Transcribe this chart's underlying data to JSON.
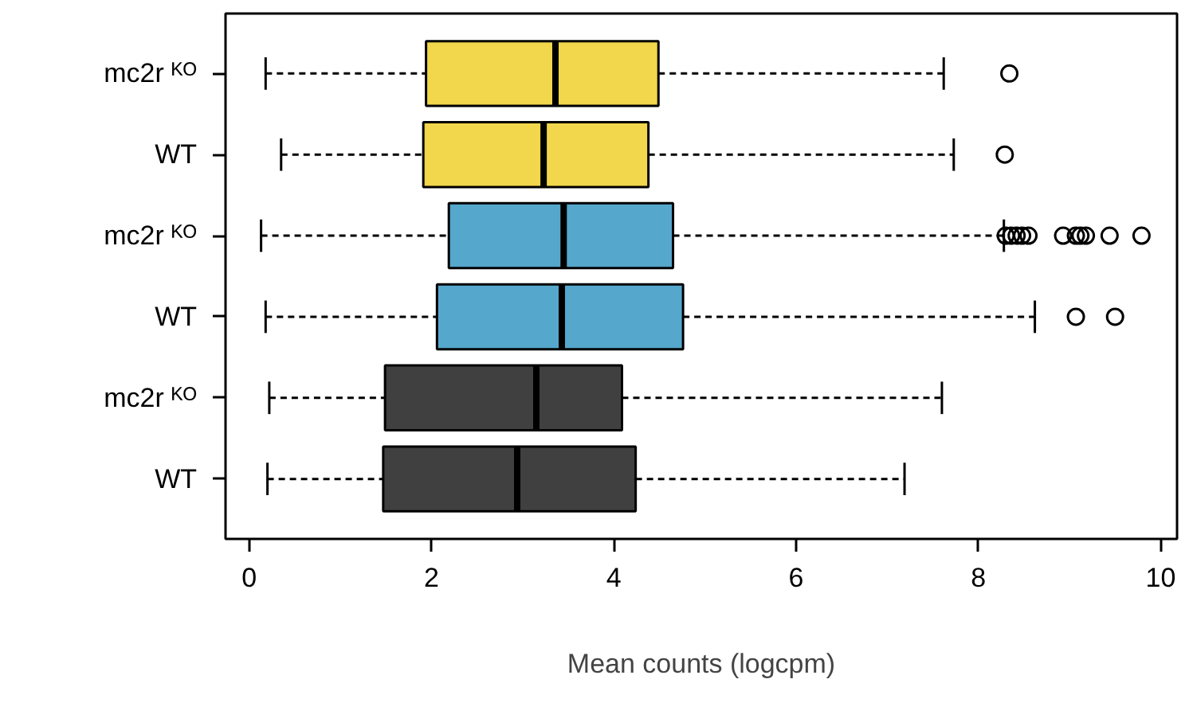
{
  "chart_data": {
    "type": "box",
    "orientation": "horizontal",
    "xlabel": "Mean counts (logcpm)",
    "categories": [
      "mc2r ᴷᴼ",
      "WT",
      "mc2r ᴷᴼ",
      "WT",
      "mc2r ᴷᴼ",
      "WT"
    ],
    "colors": [
      "#f2d64b",
      "#f2d64b",
      "#55a7cc",
      "#55a7cc",
      "#404040",
      "#404040"
    ],
    "boxes": [
      {
        "low": 0.18,
        "q1": 1.94,
        "median": 3.36,
        "q3": 4.49,
        "high": 7.62,
        "outliers": [
          8.34
        ]
      },
      {
        "low": 0.35,
        "q1": 1.91,
        "median": 3.23,
        "q3": 4.38,
        "high": 7.73,
        "outliers": [
          8.29
        ]
      },
      {
        "low": 0.13,
        "q1": 2.19,
        "median": 3.45,
        "q3": 4.65,
        "high": 8.28,
        "outliers": [
          8.3,
          8.36,
          8.42,
          8.48,
          8.55,
          8.93,
          9.07,
          9.12,
          9.18,
          9.44,
          9.79
        ]
      },
      {
        "low": 0.18,
        "q1": 2.06,
        "median": 3.43,
        "q3": 4.76,
        "high": 8.62,
        "outliers": [
          9.07,
          9.5
        ]
      },
      {
        "low": 0.22,
        "q1": 1.49,
        "median": 3.15,
        "q3": 4.09,
        "high": 7.6
      },
      {
        "low": 0.2,
        "q1": 1.47,
        "median": 2.94,
        "q3": 4.24,
        "high": 7.19
      }
    ],
    "xlim": [
      -0.26,
      10.18
    ],
    "xticks": [
      0,
      2,
      4,
      6,
      8,
      10
    ],
    "grid": false
  }
}
